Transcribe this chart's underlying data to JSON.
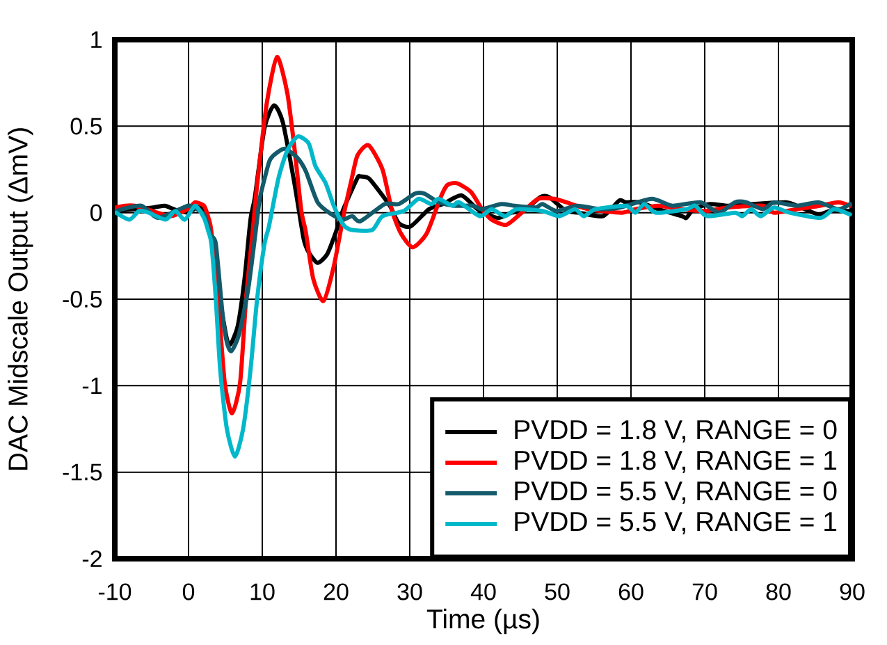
{
  "chart_data": {
    "type": "line",
    "xlabel": "Time (µs)",
    "ylabel": "DAC Midscale Output (ΔmV)",
    "xlim": [
      -10,
      90
    ],
    "ylim": [
      -2,
      1
    ],
    "xticks": [
      -10,
      0,
      10,
      20,
      30,
      40,
      50,
      60,
      70,
      80,
      90
    ],
    "yticks": [
      -2,
      -1.5,
      -1,
      -0.5,
      0,
      0.5,
      1
    ],
    "grid": true,
    "legend": "bottom right",
    "series": [
      {
        "name": "PVDD = 1.8 V, RANGE = 0",
        "color": "#000000",
        "x": [
          -9.8,
          -7.3,
          -4.8,
          -3.2,
          -2.0,
          -0.1,
          1.2,
          2.1,
          3.4,
          4.3,
          5.2,
          5.7,
          6.7,
          7.6,
          8.4,
          9.0,
          10.3,
          11.6,
          12.8,
          14.4,
          15.6,
          16.3,
          17.5,
          18.8,
          20.0,
          21.0,
          22.9,
          23.3,
          24.4,
          25.4,
          27.3,
          28.5,
          30.1,
          32.6,
          34.5,
          37.0,
          39.2,
          41.9,
          43.8,
          45.5,
          47.7,
          48.9,
          51.2,
          53.0,
          56.2,
          58.4,
          59.3,
          61.2,
          63.7,
          66.9,
          67.5,
          68.5,
          70.7,
          73.2,
          76.3,
          81.0,
          82.5,
          85.4,
          87.0,
          89.7
        ],
        "values": [
          0.01,
          0.02,
          0.03,
          0.04,
          0.02,
          0.0,
          0.03,
          0.01,
          -0.18,
          -0.51,
          -0.73,
          -0.76,
          -0.65,
          -0.38,
          -0.04,
          0.09,
          0.49,
          0.62,
          0.52,
          0.16,
          -0.15,
          -0.23,
          -0.29,
          -0.24,
          -0.11,
          0.02,
          0.2,
          0.21,
          0.2,
          0.15,
          0.04,
          -0.06,
          -0.08,
          0.02,
          0.05,
          0.1,
          0.02,
          -0.03,
          0.0,
          0.01,
          0.09,
          0.09,
          0.01,
          0.0,
          -0.02,
          0.07,
          0.06,
          0.06,
          0.02,
          -0.02,
          -0.03,
          0.02,
          0.05,
          0.04,
          0.05,
          0.06,
          0.04,
          -0.01,
          0.01,
          0.01
        ]
      },
      {
        "name": "PVDD = 1.8 V, RANGE = 1",
        "color": "#ff0000",
        "x": [
          -9.8,
          -8.6,
          -7.3,
          -5.7,
          -2.6,
          -1.1,
          0.2,
          0.9,
          2.1,
          2.7,
          3.1,
          4.0,
          4.9,
          5.9,
          7.0,
          7.8,
          8.7,
          9.3,
          10.6,
          12.0,
          13.4,
          14.4,
          15.3,
          15.9,
          16.9,
          18.3,
          19.7,
          21.1,
          22.1,
          22.9,
          24.4,
          26.3,
          27.6,
          28.8,
          30.4,
          32.3,
          34.2,
          35.1,
          36.4,
          38.3,
          39.8,
          41.1,
          43.1,
          45.2,
          47.4,
          49.6,
          51.2,
          54.3,
          58.7,
          60.6,
          63.7,
          66.9,
          70.0,
          73.2,
          77.9,
          79.4,
          82.5,
          85.6,
          88.1,
          89.7
        ],
        "values": [
          0.03,
          0.04,
          0.04,
          0.02,
          -0.02,
          0.0,
          0.03,
          0.06,
          0.04,
          -0.03,
          -0.11,
          -0.5,
          -0.98,
          -1.16,
          -0.98,
          -0.5,
          -0.11,
          0.16,
          0.63,
          0.9,
          0.69,
          0.36,
          0.01,
          -0.11,
          -0.38,
          -0.51,
          -0.31,
          0.0,
          0.19,
          0.33,
          0.39,
          0.25,
          0.01,
          -0.12,
          -0.2,
          -0.12,
          0.09,
          0.16,
          0.17,
          0.12,
          0.02,
          -0.04,
          -0.07,
          0.0,
          0.08,
          0.08,
          0.06,
          0.02,
          0.0,
          0.02,
          0.04,
          0.02,
          0.01,
          0.03,
          0.04,
          0.0,
          0.02,
          0.04,
          0.06,
          0.04
        ]
      },
      {
        "name": "PVDD = 5.5 V, RANGE = 0",
        "color": "#135a6b",
        "x": [
          -9.8,
          -6.4,
          -4.2,
          -0.7,
          0.2,
          2.1,
          3.0,
          3.7,
          4.6,
          5.2,
          5.8,
          6.8,
          8.1,
          9.3,
          9.7,
          10.9,
          11.5,
          13.0,
          14.7,
          15.9,
          17.5,
          19.4,
          20.9,
          22.2,
          23.3,
          26.6,
          28.5,
          30.7,
          32.0,
          33.9,
          36.1,
          38.6,
          39.8,
          42.4,
          44.2,
          47.1,
          48.0,
          49.9,
          52.7,
          55.9,
          58.5,
          62.8,
          65.6,
          69.4,
          71.9,
          74.1,
          75.6,
          77.9,
          79.4,
          82.5,
          85.4,
          88.1,
          89.7
        ],
        "values": [
          0.01,
          0.04,
          -0.03,
          0.03,
          0.04,
          -0.01,
          -0.13,
          -0.18,
          -0.58,
          -0.75,
          -0.8,
          -0.71,
          -0.44,
          -0.04,
          0.09,
          0.29,
          0.33,
          0.37,
          0.32,
          0.24,
          0.06,
          -0.01,
          -0.04,
          -0.02,
          -0.05,
          0.05,
          0.05,
          0.11,
          0.11,
          0.06,
          0.04,
          0.04,
          0.02,
          0.05,
          0.04,
          0.03,
          0.05,
          0.01,
          0.04,
          0.02,
          0.03,
          0.08,
          0.04,
          0.06,
          0.0,
          0.06,
          0.06,
          0.02,
          0.06,
          0.04,
          0.06,
          0.02,
          0.05
        ]
      },
      {
        "name": "PVDD = 5.5 V, RANGE = 1",
        "color": "#00b8ca",
        "x": [
          -9.8,
          -8.0,
          -6.7,
          -5.4,
          -3.1,
          -1.8,
          -0.5,
          0.9,
          2.1,
          2.7,
          3.1,
          3.7,
          4.3,
          5.2,
          6.3,
          7.4,
          8.4,
          9.3,
          10.3,
          10.9,
          12.2,
          13.4,
          14.8,
          16.3,
          17.2,
          18.6,
          19.7,
          21.0,
          22.2,
          24.9,
          26.3,
          29.2,
          31.2,
          32.9,
          33.9,
          35.8,
          36.7,
          39.5,
          41.1,
          42.9,
          44.5,
          48.0,
          50.3,
          52.4,
          53.6,
          55.2,
          59.3,
          60.6,
          61.8,
          63.4,
          67.5,
          68.7,
          70.3,
          74.1,
          75.1,
          76.3,
          77.6,
          79.4,
          81.5,
          85.7,
          87.5,
          89.7
        ],
        "values": [
          0.0,
          -0.04,
          0.01,
          0.0,
          -0.04,
          0.01,
          -0.04,
          0.04,
          -0.03,
          -0.11,
          -0.18,
          -0.5,
          -0.91,
          -1.25,
          -1.41,
          -1.25,
          -0.91,
          -0.5,
          -0.18,
          -0.08,
          0.2,
          0.36,
          0.44,
          0.4,
          0.27,
          0.17,
          0.04,
          -0.07,
          -0.1,
          -0.1,
          -0.02,
          0.01,
          0.08,
          0.05,
          0.08,
          0.04,
          0.06,
          -0.02,
          0.02,
          -0.02,
          0.02,
          0.01,
          -0.02,
          0.02,
          -0.02,
          0.02,
          0.04,
          0.0,
          0.05,
          0.0,
          0.02,
          0.04,
          -0.02,
          0.0,
          -0.02,
          0.02,
          -0.02,
          0.03,
          0.0,
          -0.03,
          0.02,
          -0.01
        ]
      }
    ]
  }
}
